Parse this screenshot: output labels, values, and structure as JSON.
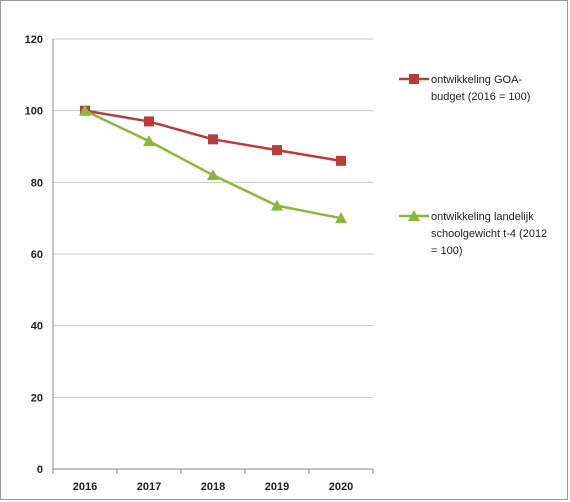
{
  "chart_data": {
    "type": "line",
    "x": [
      "2016",
      "2017",
      "2018",
      "2019",
      "2020"
    ],
    "ylim": [
      0,
      120
    ],
    "yticks": [
      0,
      20,
      40,
      60,
      80,
      100,
      120
    ],
    "grid": true,
    "legend_position": "right",
    "series": [
      {
        "name": "ontwikkeling GOA-budget (2016 = 100)",
        "legend_lines": [
          "ontwikkeling GOA-",
          "budget (2016 = 100)"
        ],
        "values": [
          100,
          97,
          92,
          89,
          86
        ],
        "color": "#b83c3a",
        "marker": "square"
      },
      {
        "name": "ontwikkeling landelijk schoolgewicht t-4 (2012 = 100)",
        "legend_lines": [
          "ontwikkeling landelijk",
          "schoolgewicht t-4 (2012",
          "= 100)"
        ],
        "values": [
          100,
          91.5,
          82,
          73.5,
          70
        ],
        "color": "#8bb73a",
        "marker": "triangle"
      }
    ]
  }
}
